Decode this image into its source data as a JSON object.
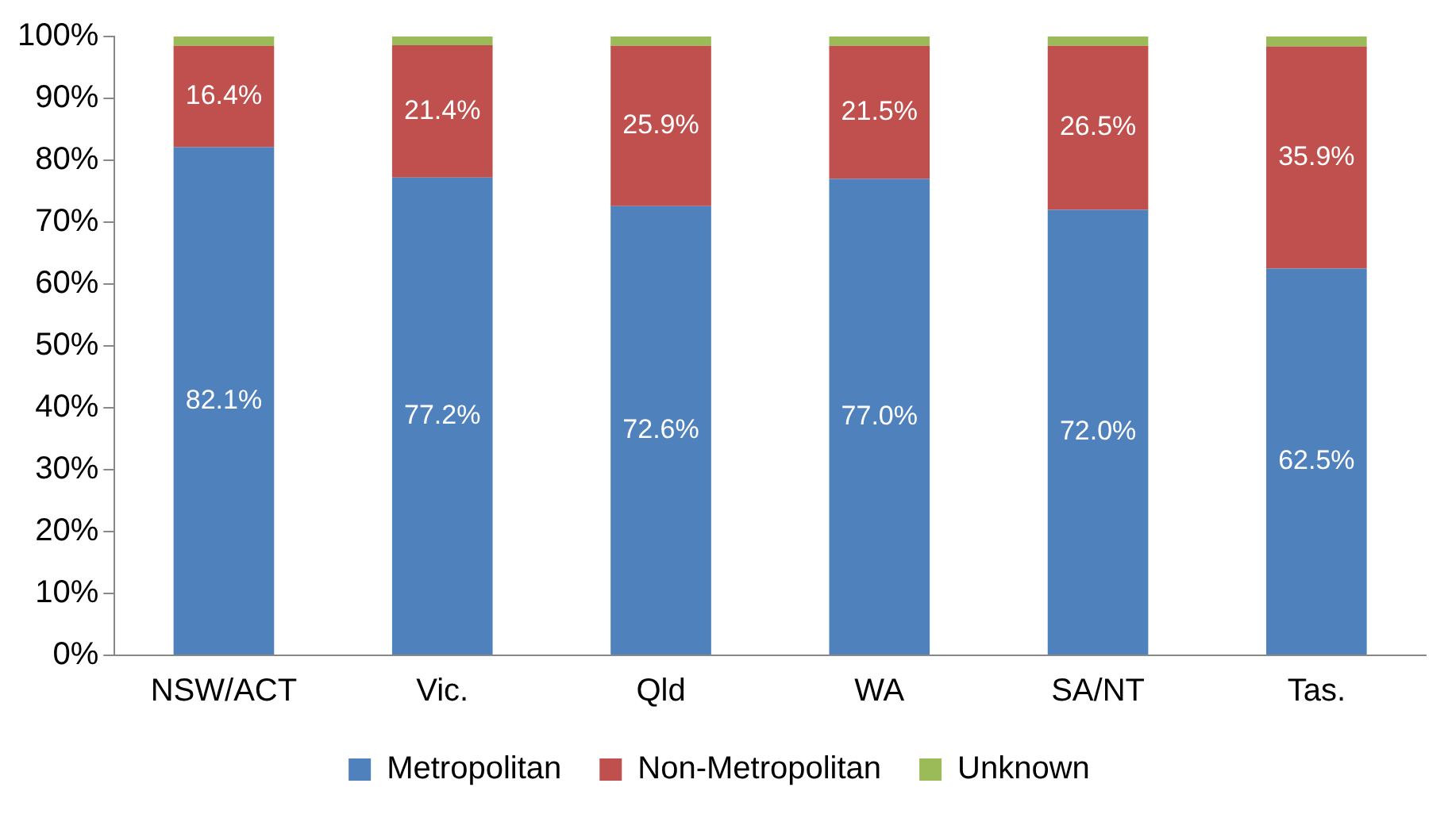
{
  "chart_data": {
    "type": "bar",
    "stacked": true,
    "categories": [
      "NSW/ACT",
      "Vic.",
      "Qld",
      "WA",
      "SA/NT",
      "Tas."
    ],
    "series": [
      {
        "name": "Metropolitan",
        "color": "#4f81bd",
        "values": [
          82.1,
          77.2,
          72.6,
          77.0,
          72.0,
          62.5
        ],
        "value_labels": [
          "82.1%",
          "77.2%",
          "72.6%",
          "77.0%",
          "72.0%",
          "62.5%"
        ]
      },
      {
        "name": "Non-Metropolitan",
        "color": "#c0504d",
        "values": [
          16.4,
          21.4,
          25.9,
          21.5,
          26.5,
          35.9
        ],
        "value_labels": [
          "16.4%",
          "21.4%",
          "25.9%",
          "21.5%",
          "26.5%",
          "35.9%"
        ]
      },
      {
        "name": "Unknown",
        "color": "#9bbb59",
        "values": [
          1.5,
          1.4,
          1.5,
          1.5,
          1.5,
          1.6
        ]
      }
    ],
    "ylim": [
      0,
      100
    ],
    "yticks": [
      {
        "value": 0,
        "label": "0%"
      },
      {
        "value": 10,
        "label": "10%"
      },
      {
        "value": 20,
        "label": "20%"
      },
      {
        "value": 30,
        "label": "30%"
      },
      {
        "value": 40,
        "label": "40%"
      },
      {
        "value": 50,
        "label": "50%"
      },
      {
        "value": 60,
        "label": "60%"
      },
      {
        "value": 70,
        "label": "70%"
      },
      {
        "value": 80,
        "label": "80%"
      },
      {
        "value": 90,
        "label": "90%"
      },
      {
        "value": 100,
        "label": "100%"
      }
    ],
    "grid": false,
    "legend": "bottom"
  }
}
